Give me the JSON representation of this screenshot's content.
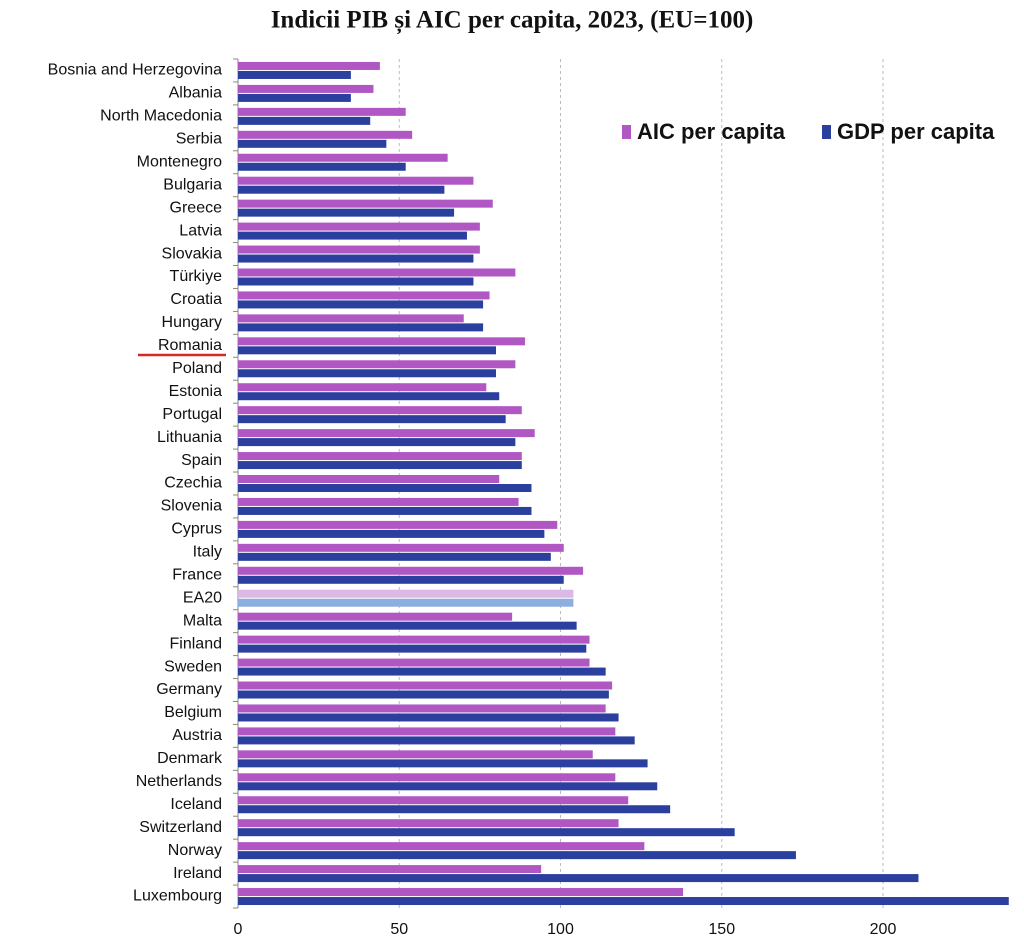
{
  "chart_data": {
    "type": "hbar",
    "title": "Indicii PIB și AIC per capita, 2023, (EU=100)",
    "categories": [
      "Bosnia and Herzegovina",
      "Albania",
      "North Macedonia",
      "Serbia",
      "Montenegro",
      "Bulgaria",
      "Greece",
      "Latvia",
      "Slovakia",
      "Türkiye",
      "Croatia",
      "Hungary",
      "Romania",
      "Poland",
      "Estonia",
      "Portugal",
      "Lithuania",
      "Spain",
      "Czechia",
      "Slovenia",
      "Cyprus",
      "Italy",
      "France",
      "EA20",
      "Malta",
      "Finland",
      "Sweden",
      "Germany",
      "Belgium",
      "Austria",
      "Denmark",
      "Netherlands",
      "Iceland",
      "Switzerland",
      "Norway",
      "Ireland",
      "Luxembourg"
    ],
    "series": [
      {
        "name": "AIC per capita",
        "color": "#b057c4",
        "colors": [
          "#b057c4",
          "#b057c4",
          "#b057c4",
          "#b057c4",
          "#b057c4",
          "#b057c4",
          "#b057c4",
          "#b057c4",
          "#b057c4",
          "#b057c4",
          "#b057c4",
          "#b057c4",
          "#b057c4",
          "#b057c4",
          "#b057c4",
          "#b057c4",
          "#b057c4",
          "#b057c4",
          "#b057c4",
          "#b057c4",
          "#b057c4",
          "#b057c4",
          "#b057c4",
          "#dcb8e6",
          "#b057c4",
          "#b057c4",
          "#b057c4",
          "#b057c4",
          "#b057c4",
          "#b057c4",
          "#b057c4",
          "#b057c4",
          "#b057c4",
          "#b057c4",
          "#b057c4",
          "#b057c4",
          "#b057c4"
        ],
        "values": [
          44,
          42,
          52,
          54,
          65,
          73,
          79,
          75,
          75,
          86,
          78,
          70,
          89,
          86,
          77,
          88,
          92,
          88,
          81,
          87,
          99,
          101,
          107,
          104,
          85,
          109,
          109,
          116,
          114,
          117,
          110,
          117,
          121,
          118,
          126,
          94,
          138
        ]
      },
      {
        "name": "GDP per capita",
        "color": "#2b3f9e",
        "colors": [
          "#2b3f9e",
          "#2b3f9e",
          "#2b3f9e",
          "#2b3f9e",
          "#2b3f9e",
          "#2b3f9e",
          "#2b3f9e",
          "#2b3f9e",
          "#2b3f9e",
          "#2b3f9e",
          "#2b3f9e",
          "#2b3f9e",
          "#2b3f9e",
          "#2b3f9e",
          "#2b3f9e",
          "#2b3f9e",
          "#2b3f9e",
          "#2b3f9e",
          "#2b3f9e",
          "#2b3f9e",
          "#2b3f9e",
          "#2b3f9e",
          "#2b3f9e",
          "#8eaee0",
          "#2b3f9e",
          "#2b3f9e",
          "#2b3f9e",
          "#2b3f9e",
          "#2b3f9e",
          "#2b3f9e",
          "#2b3f9e",
          "#2b3f9e",
          "#2b3f9e",
          "#2b3f9e",
          "#2b3f9e",
          "#2b3f9e",
          "#2b3f9e"
        ],
        "values": [
          35,
          35,
          41,
          46,
          52,
          64,
          67,
          71,
          73,
          73,
          76,
          76,
          80,
          80,
          81,
          83,
          86,
          88,
          91,
          91,
          95,
          97,
          101,
          104,
          105,
          108,
          114,
          115,
          118,
          123,
          127,
          130,
          134,
          154,
          173,
          211,
          239
        ]
      }
    ],
    "xlim": [
      0,
      240
    ],
    "xticks": [
      0,
      50,
      100,
      150,
      200
    ],
    "grid": true,
    "legend": "top-right"
  }
}
